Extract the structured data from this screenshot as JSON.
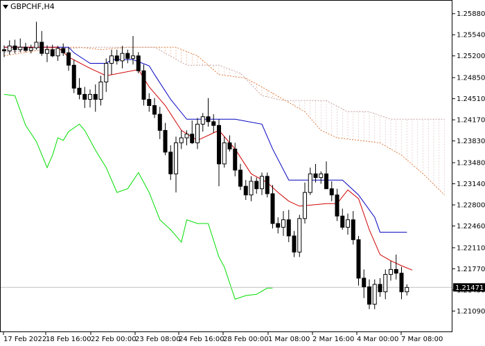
{
  "symbol_label": "GBPCHF,H4",
  "colors": {
    "background": "#ffffff",
    "frame": "#000000",
    "candle": "#000000",
    "tenkan": "#d00000",
    "kijun": "#0000c0",
    "chikou": "#00dd00",
    "senkou_a": "#e08040",
    "senkou_b": "#c8a0a0",
    "current_price_line": "#c0c0c0",
    "price_tag_bg": "#000000"
  },
  "chart_data": {
    "type": "candlestick",
    "indicator": "ichimoku",
    "ylim": [
      1.2075,
      1.261
    ],
    "y_ticks": [
      "1.25880",
      "1.25540",
      "1.25200",
      "1.24850",
      "1.24510",
      "1.24170",
      "1.23830",
      "1.23480",
      "1.23140",
      "1.22800",
      "1.22460",
      "1.22110",
      "1.21770",
      "1.21430",
      "1.21090"
    ],
    "x_ticks": [
      "17 Feb 2022",
      "18 Feb 16:00",
      "22 Feb 00:00",
      "23 Feb 08:00",
      "24 Feb 16:00",
      "28 Feb 00:00",
      "1 Mar 08:00",
      "2 Mar 16:00",
      "4 Mar 00:00",
      "7 Mar 08:00"
    ],
    "current_price": 1.21471,
    "current_price_label": "1.21471",
    "candles": [
      [
        1.253,
        1.2537,
        1.2518,
        1.2528
      ],
      [
        1.2528,
        1.2545,
        1.2522,
        1.2536
      ],
      [
        1.2536,
        1.2546,
        1.2524,
        1.253
      ],
      [
        1.253,
        1.2548,
        1.2526,
        1.2534
      ],
      [
        1.2534,
        1.2541,
        1.2526,
        1.2529
      ],
      [
        1.2529,
        1.2538,
        1.2524,
        1.2533
      ],
      [
        1.2533,
        1.2575,
        1.253,
        1.2542
      ],
      [
        1.2542,
        1.256,
        1.252,
        1.2524
      ],
      [
        1.2524,
        1.2537,
        1.251,
        1.253
      ],
      [
        1.253,
        1.2538,
        1.2518,
        1.252
      ],
      [
        1.252,
        1.2536,
        1.2512,
        1.2532
      ],
      [
        1.2532,
        1.254,
        1.252,
        1.2525
      ],
      [
        1.2525,
        1.2534,
        1.2496,
        1.2505
      ],
      [
        1.2505,
        1.2514,
        1.246,
        1.2468
      ],
      [
        1.2468,
        1.2484,
        1.245,
        1.2458
      ],
      [
        1.2458,
        1.247,
        1.2436,
        1.245
      ],
      [
        1.245,
        1.2466,
        1.2437,
        1.2458
      ],
      [
        1.2458,
        1.2474,
        1.243,
        1.245
      ],
      [
        1.245,
        1.2488,
        1.244,
        1.2478
      ],
      [
        1.2478,
        1.2516,
        1.2462,
        1.2508
      ],
      [
        1.2508,
        1.253,
        1.249,
        1.252
      ],
      [
        1.252,
        1.253,
        1.2506,
        1.2512
      ],
      [
        1.2512,
        1.2536,
        1.25,
        1.2524
      ],
      [
        1.2524,
        1.253,
        1.2508,
        1.2516
      ],
      [
        1.2516,
        1.2552,
        1.2506,
        1.252
      ],
      [
        1.252,
        1.2526,
        1.2492,
        1.2496
      ],
      [
        1.2496,
        1.2506,
        1.244,
        1.245
      ],
      [
        1.245,
        1.246,
        1.243,
        1.244
      ],
      [
        1.244,
        1.2452,
        1.242,
        1.2426
      ],
      [
        1.2426,
        1.2438,
        1.2386,
        1.24
      ],
      [
        1.24,
        1.2412,
        1.236,
        1.2365
      ],
      [
        1.2365,
        1.2376,
        1.232,
        1.233
      ],
      [
        1.233,
        1.239,
        1.23,
        1.238
      ],
      [
        1.238,
        1.24,
        1.237,
        1.2388
      ],
      [
        1.2388,
        1.24,
        1.2376,
        1.2394
      ],
      [
        1.2394,
        1.2416,
        1.2378,
        1.238
      ],
      [
        1.238,
        1.242,
        1.237,
        1.241
      ],
      [
        1.241,
        1.2428,
        1.2398,
        1.2422
      ],
      [
        1.2422,
        1.2452,
        1.2406,
        1.2414
      ],
      [
        1.2414,
        1.2426,
        1.2396,
        1.2408
      ],
      [
        1.2408,
        1.2418,
        1.231,
        1.2346
      ],
      [
        1.2346,
        1.239,
        1.234,
        1.238
      ],
      [
        1.238,
        1.2392,
        1.2366,
        1.237
      ],
      [
        1.237,
        1.238,
        1.2326,
        1.2336
      ],
      [
        1.2336,
        1.2346,
        1.2304,
        1.231
      ],
      [
        1.231,
        1.232,
        1.2288,
        1.2296
      ],
      [
        1.2296,
        1.2326,
        1.2286,
        1.2318
      ],
      [
        1.2318,
        1.2324,
        1.2298,
        1.2306
      ],
      [
        1.2306,
        1.2332,
        1.2296,
        1.2326
      ],
      [
        1.2326,
        1.2332,
        1.2292,
        1.2298
      ],
      [
        1.2298,
        1.2312,
        1.2242,
        1.225
      ],
      [
        1.225,
        1.226,
        1.2234,
        1.2244
      ],
      [
        1.2244,
        1.227,
        1.223,
        1.2256
      ],
      [
        1.2256,
        1.2272,
        1.222,
        1.223
      ],
      [
        1.223,
        1.2238,
        1.2196,
        1.2204
      ],
      [
        1.2204,
        1.2264,
        1.2196,
        1.2258
      ],
      [
        1.2258,
        1.2316,
        1.225,
        1.23
      ],
      [
        1.23,
        1.234,
        1.2296,
        1.233
      ],
      [
        1.233,
        1.2346,
        1.2316,
        1.2324
      ],
      [
        1.2324,
        1.2334,
        1.2314,
        1.233
      ],
      [
        1.233,
        1.235,
        1.2306,
        1.2306
      ],
      [
        1.2306,
        1.2318,
        1.2286,
        1.2296
      ],
      [
        1.2296,
        1.2306,
        1.2254,
        1.2262
      ],
      [
        1.2262,
        1.2274,
        1.224,
        1.2244
      ],
      [
        1.2244,
        1.2266,
        1.2232,
        1.2256
      ],
      [
        1.2256,
        1.227,
        1.2216,
        1.2224
      ],
      [
        1.2224,
        1.223,
        1.215,
        1.2162
      ],
      [
        1.2162,
        1.2176,
        1.213,
        1.2148
      ],
      [
        1.2148,
        1.216,
        1.2112,
        1.212
      ],
      [
        1.212,
        1.216,
        1.2112,
        1.2152
      ],
      [
        1.2152,
        1.2162,
        1.2132,
        1.214
      ],
      [
        1.214,
        1.2176,
        1.2128,
        1.2168
      ],
      [
        1.2168,
        1.219,
        1.2158,
        1.2176
      ],
      [
        1.2176,
        1.22,
        1.216,
        1.217
      ],
      [
        1.217,
        1.218,
        1.2128,
        1.214
      ],
      [
        1.214,
        1.2152,
        1.2134,
        1.2147
      ]
    ],
    "tenkan": [
      [
        0,
        1.2534
      ],
      [
        10,
        1.2534
      ],
      [
        12,
        1.2518
      ],
      [
        16,
        1.25
      ],
      [
        19,
        1.2488
      ],
      [
        25,
        1.2498
      ],
      [
        27,
        1.247
      ],
      [
        30,
        1.244
      ],
      [
        33,
        1.24
      ],
      [
        36,
        1.2384
      ],
      [
        40,
        1.24
      ],
      [
        43,
        1.237
      ],
      [
        46,
        1.233
      ],
      [
        49,
        1.2316
      ],
      [
        51,
        1.23
      ],
      [
        53,
        1.2286
      ],
      [
        55,
        1.2278
      ],
      [
        60,
        1.2282
      ],
      [
        62,
        1.2282
      ],
      [
        64,
        1.2304
      ],
      [
        66,
        1.229
      ],
      [
        68,
        1.224
      ],
      [
        70,
        1.22
      ],
      [
        72,
        1.219
      ],
      [
        74,
        1.2182
      ],
      [
        76,
        1.2175
      ]
    ],
    "kijun": [
      [
        0,
        1.2534
      ],
      [
        12,
        1.2534
      ],
      [
        13,
        1.2525
      ],
      [
        16,
        1.2508
      ],
      [
        19,
        1.2508
      ],
      [
        20,
        1.2514
      ],
      [
        24,
        1.2514
      ],
      [
        27,
        1.2504
      ],
      [
        28,
        1.249
      ],
      [
        31,
        1.245
      ],
      [
        34,
        1.2418
      ],
      [
        43,
        1.2418
      ],
      [
        48,
        1.241
      ],
      [
        50,
        1.237
      ],
      [
        53,
        1.232
      ],
      [
        63,
        1.232
      ],
      [
        66,
        1.2296
      ],
      [
        69,
        1.226
      ],
      [
        70,
        1.2236
      ],
      [
        75,
        1.2236
      ]
    ],
    "chikou": [
      [
        0,
        1.2458
      ],
      [
        2,
        1.2456
      ],
      [
        4,
        1.2408
      ],
      [
        6,
        1.2382
      ],
      [
        8,
        1.234
      ],
      [
        9,
        1.236
      ],
      [
        10,
        1.2388
      ],
      [
        11,
        1.2384
      ],
      [
        12,
        1.2398
      ],
      [
        14,
        1.241
      ],
      [
        15,
        1.24
      ],
      [
        17,
        1.2368
      ],
      [
        19,
        1.234
      ],
      [
        21,
        1.23
      ],
      [
        23,
        1.2306
      ],
      [
        25,
        1.2332
      ],
      [
        27,
        1.23
      ],
      [
        29,
        1.2256
      ],
      [
        31,
        1.224
      ],
      [
        33,
        1.222
      ],
      [
        34,
        1.2256
      ],
      [
        36,
        1.225
      ],
      [
        38,
        1.225
      ],
      [
        40,
        1.2196
      ],
      [
        41,
        1.218
      ],
      [
        43,
        1.2128
      ],
      [
        45,
        1.2134
      ],
      [
        47,
        1.2136
      ],
      [
        49,
        1.2146
      ],
      [
        50,
        1.2146
      ]
    ],
    "senkou_a": [
      [
        0,
        1.252
      ],
      [
        10,
        1.2534
      ],
      [
        14,
        1.2534
      ],
      [
        18,
        1.253
      ],
      [
        23,
        1.2534
      ],
      [
        28,
        1.2534
      ],
      [
        32,
        1.2534
      ],
      [
        36,
        1.252
      ],
      [
        40,
        1.249
      ],
      [
        45,
        1.2484
      ],
      [
        48,
        1.247
      ],
      [
        52,
        1.245
      ],
      [
        56,
        1.243
      ],
      [
        59,
        1.24
      ],
      [
        62,
        1.2388
      ],
      [
        66,
        1.2384
      ],
      [
        70,
        1.238
      ],
      [
        74,
        1.236
      ],
      [
        78,
        1.233
      ],
      [
        82,
        1.2296
      ]
    ],
    "senkou_b": [
      [
        0,
        1.2526
      ],
      [
        12,
        1.2532
      ],
      [
        16,
        1.2534
      ],
      [
        22,
        1.2534
      ],
      [
        28,
        1.2534
      ],
      [
        34,
        1.2505
      ],
      [
        40,
        1.2505
      ],
      [
        44,
        1.2492
      ],
      [
        48,
        1.2456
      ],
      [
        52,
        1.2448
      ],
      [
        56,
        1.2448
      ],
      [
        60,
        1.2448
      ],
      [
        64,
        1.243
      ],
      [
        68,
        1.243
      ],
      [
        72,
        1.2418
      ],
      [
        76,
        1.2418
      ],
      [
        80,
        1.2418
      ],
      [
        82,
        1.2418
      ]
    ]
  }
}
